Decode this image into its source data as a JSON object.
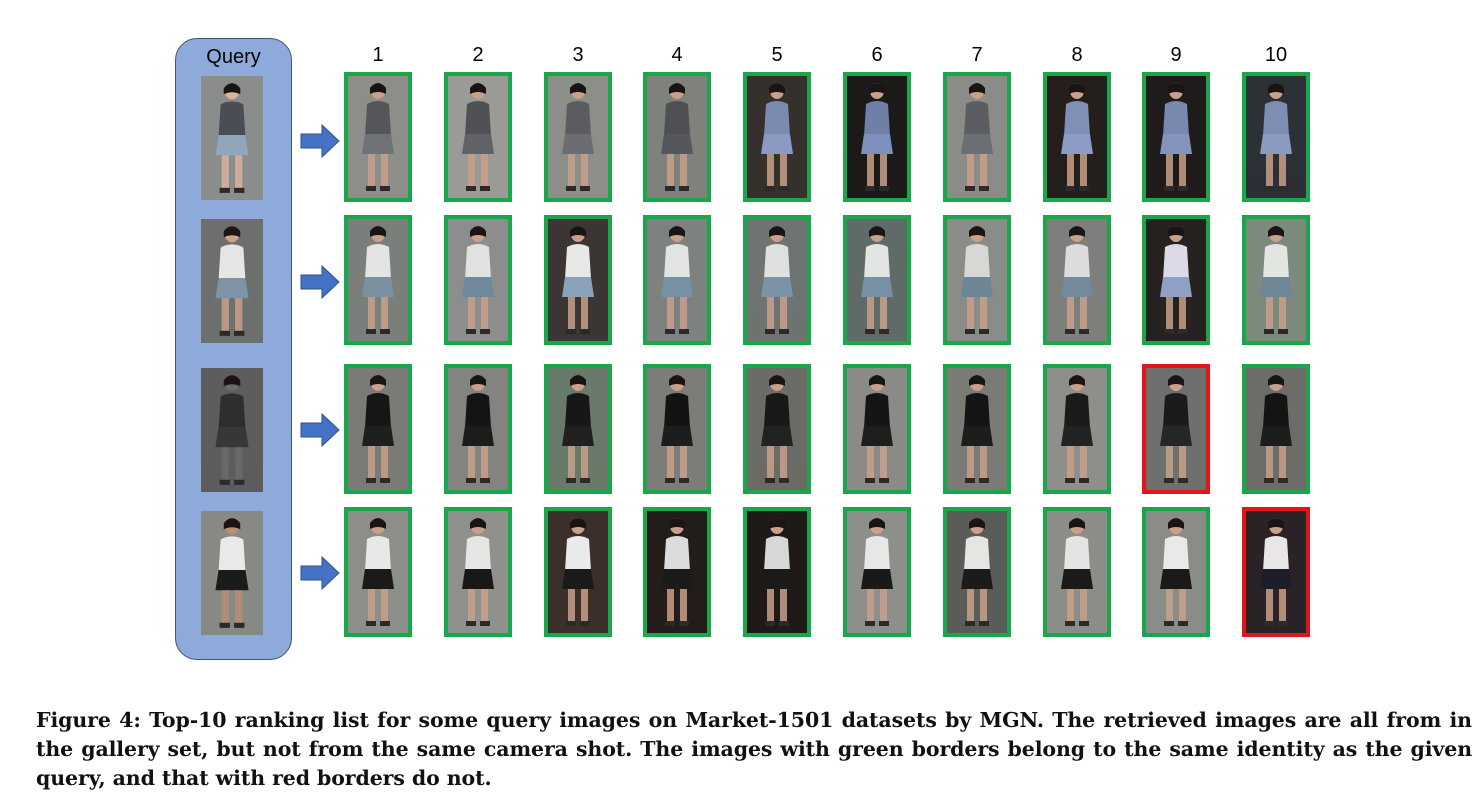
{
  "figure": {
    "query_label": "Query",
    "rank_labels": [
      "1",
      "2",
      "3",
      "4",
      "5",
      "6",
      "7",
      "8",
      "9",
      "10"
    ],
    "border_colors": {
      "match": "#1aa64a",
      "mismatch": "#e0161b"
    },
    "panel_color": "#8eaadb",
    "arrow_color": "#4472c4",
    "rows": [
      {
        "query": {
          "bg": "#8a8d8c",
          "top": "#4a4d53",
          "bottom": "#8fa6bb",
          "skin": "#d9b39c"
        },
        "results": [
          {
            "correct": true,
            "bg": "#8d8e8a",
            "top": "#54565a",
            "bottom": "#6f7277"
          },
          {
            "correct": true,
            "bg": "#9a9b96",
            "top": "#505155",
            "bottom": "#606266"
          },
          {
            "correct": true,
            "bg": "#8c8f88",
            "top": "#5a5c60",
            "bottom": "#6b6d72"
          },
          {
            "correct": true,
            "bg": "#7f817c",
            "top": "#4e5054",
            "bottom": "#55575c"
          },
          {
            "correct": true,
            "bg": "#35302c",
            "top": "#7b8bb0",
            "bottom": "#8a9ac2"
          },
          {
            "correct": true,
            "bg": "#1c1a19",
            "top": "#6f7fa8",
            "bottom": "#7d8fbb"
          },
          {
            "correct": true,
            "bg": "#8b8c87",
            "top": "#5b5d61",
            "bottom": "#6b6e72"
          },
          {
            "correct": true,
            "bg": "#241f1d",
            "top": "#7f8fb5",
            "bottom": "#8c9cc5"
          },
          {
            "correct": true,
            "bg": "#1e1b1a",
            "top": "#7888ae",
            "bottom": "#8495bd"
          },
          {
            "correct": true,
            "bg": "#2c3136",
            "top": "#7e8eb2",
            "bottom": "#8b9bbf"
          }
        ]
      },
      {
        "query": {
          "bg": "#6c6f6e",
          "top": "#e6e6e4",
          "bottom": "#7f93a6",
          "skin": "#c9a289"
        },
        "results": [
          {
            "correct": true,
            "bg": "#7b7f7c",
            "top": "#e4e5e2",
            "bottom": "#7b90a0"
          },
          {
            "correct": true,
            "bg": "#8b8e8c",
            "top": "#e0e2df",
            "bottom": "#6f889b"
          },
          {
            "correct": true,
            "bg": "#3b3634",
            "top": "#e8e8e6",
            "bottom": "#8aa3bb"
          },
          {
            "correct": true,
            "bg": "#7d817f",
            "top": "#e2e4e1",
            "bottom": "#7690a4"
          },
          {
            "correct": true,
            "bg": "#6e7471",
            "top": "#dfe1de",
            "bottom": "#7b93a6"
          },
          {
            "correct": true,
            "bg": "#5f6b66",
            "top": "#e3e5e2",
            "bottom": "#7890a3"
          },
          {
            "correct": true,
            "bg": "#8a8c88",
            "top": "#d7d8d6",
            "bottom": "#6e8596"
          },
          {
            "correct": true,
            "bg": "#7d7f7c",
            "top": "#dcdddb",
            "bottom": "#728a9b"
          },
          {
            "correct": true,
            "bg": "#26221f",
            "top": "#dadbe6",
            "bottom": "#8f9fc5"
          },
          {
            "correct": true,
            "bg": "#7c8a7d",
            "top": "#e3e5e2",
            "bottom": "#6f8697"
          }
        ]
      },
      {
        "query": {
          "bg": "#5d5d5d",
          "top": "#2e2e2e",
          "bottom": "#373737",
          "skin": "#6a6a6a"
        },
        "results": [
          {
            "correct": true,
            "bg": "#7a7a76",
            "top": "#161616",
            "bottom": "#1f1f1f"
          },
          {
            "correct": true,
            "bg": "#83847f",
            "top": "#141414",
            "bottom": "#1c1c1c"
          },
          {
            "correct": true,
            "bg": "#6a7a6a",
            "top": "#171717",
            "bottom": "#202020"
          },
          {
            "correct": true,
            "bg": "#7c7d78",
            "top": "#131313",
            "bottom": "#1d1d1d"
          },
          {
            "correct": true,
            "bg": "#6b6b67",
            "top": "#181818",
            "bottom": "#222222"
          },
          {
            "correct": true,
            "bg": "#8a8b86",
            "top": "#151515",
            "bottom": "#1e1e1e"
          },
          {
            "correct": true,
            "bg": "#7b7b76",
            "top": "#141414",
            "bottom": "#1d1d1d"
          },
          {
            "correct": true,
            "bg": "#8e8f8a",
            "top": "#1a1a1a",
            "bottom": "#232323"
          },
          {
            "correct": false,
            "bg": "#6e706d",
            "top": "#1b1b1b",
            "bottom": "#262626"
          },
          {
            "correct": true,
            "bg": "#6c6d69",
            "top": "#141414",
            "bottom": "#1d1d1d"
          }
        ]
      },
      {
        "query": {
          "bg": "#878985",
          "top": "#e9e9e7",
          "bottom": "#1b1b1b",
          "skin": "#b88e75"
        },
        "results": [
          {
            "correct": true,
            "bg": "#8c8e89",
            "top": "#e8e8e6",
            "bottom": "#1a1a1a"
          },
          {
            "correct": true,
            "bg": "#8f918c",
            "top": "#e6e6e4",
            "bottom": "#181818"
          },
          {
            "correct": true,
            "bg": "#3a2f2a",
            "top": "#eaeaea",
            "bottom": "#1a1a1a"
          },
          {
            "correct": true,
            "bg": "#231d1a",
            "top": "#dcdcdc",
            "bottom": "#1b1b1b"
          },
          {
            "correct": true,
            "bg": "#1f1a18",
            "top": "#d7d7d7",
            "bottom": "#1a1a1a"
          },
          {
            "correct": true,
            "bg": "#8d8f8a",
            "top": "#e7e7e5",
            "bottom": "#191919"
          },
          {
            "correct": true,
            "bg": "#5a5c58",
            "top": "#e5e5e3",
            "bottom": "#1b1b1b"
          },
          {
            "correct": true,
            "bg": "#8b8d88",
            "top": "#e4e4e2",
            "bottom": "#1a1a1a"
          },
          {
            "correct": true,
            "bg": "#8a8c87",
            "top": "#e9e9e7",
            "bottom": "#1a1a1a"
          },
          {
            "correct": false,
            "bg": "#2a2226",
            "top": "#e8e6e6",
            "bottom": "#1e1e2a"
          }
        ]
      }
    ]
  },
  "caption": "Figure 4: Top-10 ranking list for some query images on Market-1501 datasets by MGN. The retrieved images are all from in the gallery set, but not from the same camera shot. The images with green borders belong to the same identity as the given query, and that with red borders do not."
}
